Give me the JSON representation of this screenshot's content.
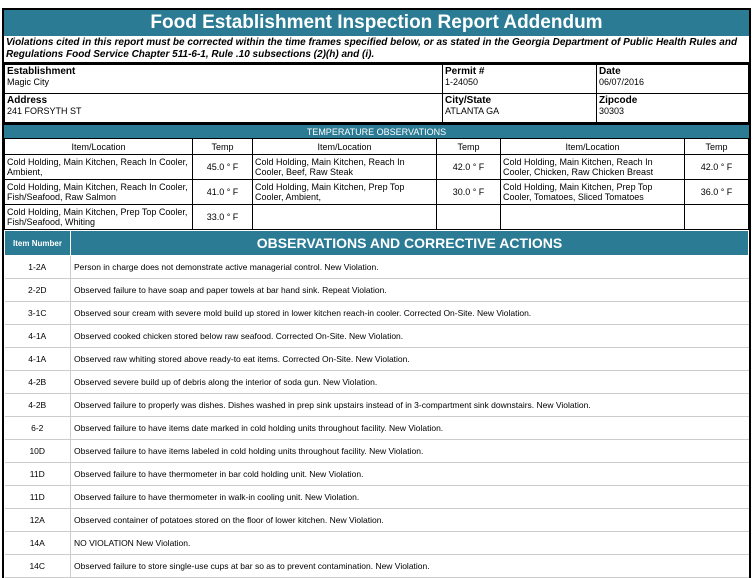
{
  "title": "Food Establishment Inspection Report Addendum",
  "notice": "Violations cited in this report must be corrected within the time frames specified below, or as stated in the Georgia Department of Public Health Rules and Regulations Food Service Chapter 511-6-1, Rule .10 subsections (2)(h) and (i).",
  "info": {
    "establishment_label": "Establishment",
    "establishment": "Magic City",
    "permit_label": "Permit #",
    "permit": "1-24050",
    "date_label": "Date",
    "date": "06/07/2016",
    "address_label": "Address",
    "address": "241 FORSYTH ST",
    "city_label": "City/State",
    "city": "ATLANTA GA",
    "zip_label": "Zipcode",
    "zip": "30303"
  },
  "temperature": {
    "heading": "TEMPERATURE OBSERVATIONS",
    "col_item": "Item/Location",
    "col_temp": "Temp",
    "rows": [
      [
        {
          "item": "Cold Holding, Main Kitchen, Reach In Cooler, Ambient,",
          "temp": "45.0 ° F"
        },
        {
          "item": "Cold Holding, Main Kitchen, Reach In Cooler, Beef, Raw Steak",
          "temp": "42.0 ° F"
        },
        {
          "item": "Cold Holding, Main Kitchen, Reach In Cooler, Chicken, Raw Chicken Breast",
          "temp": "42.0 ° F"
        }
      ],
      [
        {
          "item": "Cold Holding, Main Kitchen, Reach In Cooler, Fish/Seafood, Raw Salmon",
          "temp": "41.0 ° F"
        },
        {
          "item": "Cold Holding, Main Kitchen, Prep Top Cooler, Ambient,",
          "temp": "30.0 ° F"
        },
        {
          "item": "Cold Holding, Main Kitchen, Prep Top Cooler, Tomatoes, Sliced Tomatoes",
          "temp": "36.0 ° F"
        }
      ],
      [
        {
          "item": "Cold Holding, Main Kitchen, Prep Top Cooler, Fish/Seafood, Whiting",
          "temp": "33.0 ° F"
        },
        {
          "item": "",
          "temp": ""
        },
        {
          "item": "",
          "temp": ""
        }
      ]
    ]
  },
  "observations": {
    "col_number": "Item Number",
    "heading": "OBSERVATIONS AND CORRECTIVE ACTIONS",
    "rows": [
      {
        "n": "1-2A",
        "t": "Person in charge does not demonstrate active managerial control.  New Violation."
      },
      {
        "n": "2-2D",
        "t": "Observed failure to have soap and paper towels at bar hand sink.  Repeat Violation."
      },
      {
        "n": "3-1C",
        "t": "Observed sour cream with severe mold build up stored in lower kitchen reach-in cooler.  Corrected On-Site.  New Violation."
      },
      {
        "n": "4-1A",
        "t": "Observed cooked chicken stored below raw seafood.  Corrected On-Site.  New Violation."
      },
      {
        "n": "4-1A",
        "t": "Observed raw whiting stored above ready-to eat items.  Corrected On-Site.  New Violation."
      },
      {
        "n": "4-2B",
        "t": "Observed severe build up of debris along the interior of soda gun.  New Violation."
      },
      {
        "n": "4-2B",
        "t": "Observed failure to properly was dishes. Dishes washed in prep sink upstairs instead of in 3-compartment sink downstairs.  New Violation."
      },
      {
        "n": "6-2",
        "t": "Observed failure to have items date marked in cold holding units throughout facility.  New Violation."
      },
      {
        "n": "10D",
        "t": "Observed failure to have items labeled in cold holding units throughout facility.  New Violation."
      },
      {
        "n": "11D",
        "t": "Observed failure to have thermometer in bar cold holding unit.  New Violation."
      },
      {
        "n": "11D",
        "t": "Observed failure to have thermometer in walk-in cooling unit.  New Violation."
      },
      {
        "n": "12A",
        "t": "Observed container of potatoes stored on the floor of lower kitchen.  New Violation."
      },
      {
        "n": "14A",
        "t": "NO VIOLATION  New Violation."
      },
      {
        "n": "14C",
        "t": "Observed failure to store single-use cups at bar so as to prevent contamination.  New Violation."
      }
    ]
  }
}
